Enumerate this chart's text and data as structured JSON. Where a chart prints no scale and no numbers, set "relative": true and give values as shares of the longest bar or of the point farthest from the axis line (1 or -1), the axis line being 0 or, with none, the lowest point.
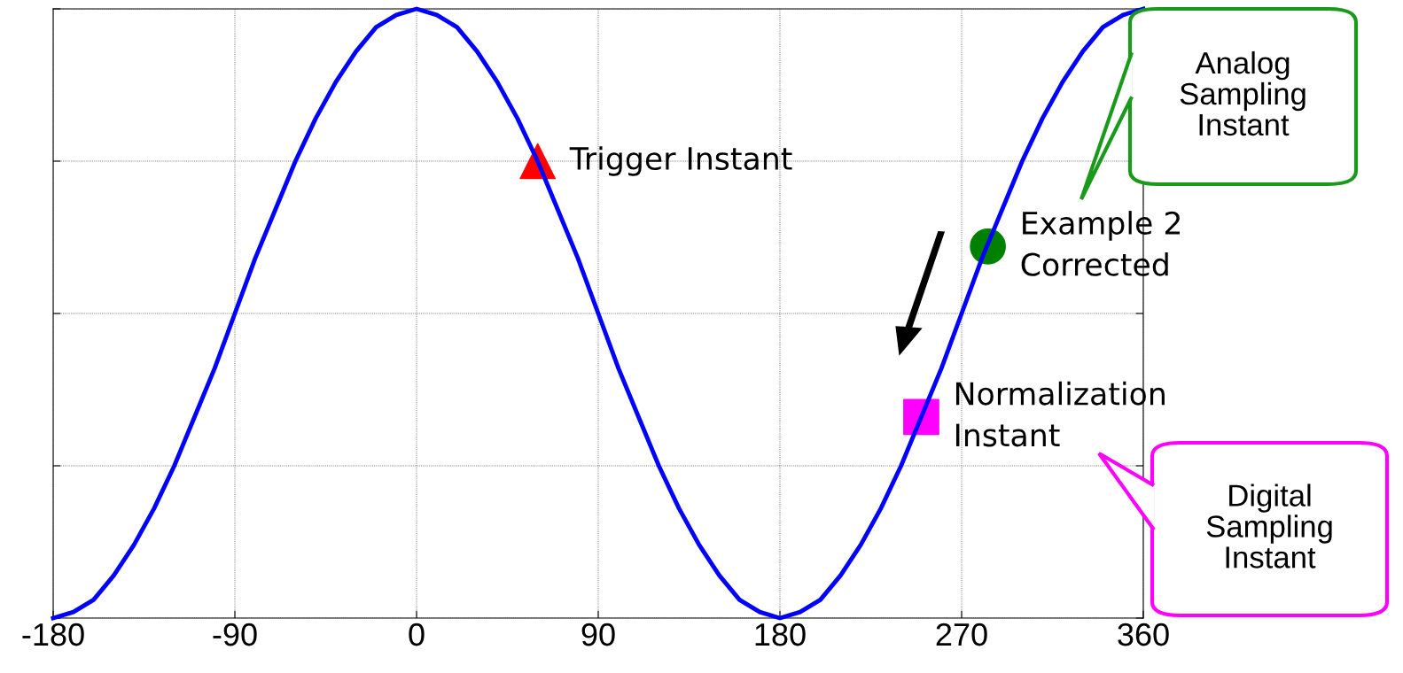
{
  "chart_data": {
    "type": "line",
    "relative": true,
    "xlim": [
      -180,
      360
    ],
    "xticks": [
      -180,
      -90,
      0,
      90,
      180,
      270,
      360
    ],
    "grid": true,
    "tick_labels": "x",
    "series": [
      {
        "color": "#0000ff",
        "x": [
          -180,
          -170,
          -160,
          -150,
          -140,
          -130,
          -120,
          -110,
          -100,
          -90,
          -80,
          -70,
          -60,
          -50,
          -40,
          -30,
          -20,
          -10,
          0,
          10,
          20,
          30,
          40,
          50,
          60,
          70,
          80,
          90,
          100,
          110,
          120,
          130,
          140,
          150,
          160,
          170,
          180,
          190,
          200,
          210,
          220,
          230,
          240,
          250,
          260,
          270,
          280,
          290,
          300,
          310,
          320,
          330,
          340,
          350,
          360
        ],
        "values": [
          0,
          0.01,
          0.03,
          0.07,
          0.12,
          0.18,
          0.25,
          0.33,
          0.41,
          0.5,
          0.59,
          0.67,
          0.75,
          0.82,
          0.88,
          0.93,
          0.97,
          0.99,
          1,
          0.99,
          0.97,
          0.93,
          0.88,
          0.82,
          0.75,
          0.67,
          0.59,
          0.5,
          0.41,
          0.33,
          0.25,
          0.18,
          0.12,
          0.07,
          0.03,
          0.01,
          0,
          0.01,
          0.03,
          0.07,
          0.12,
          0.18,
          0.25,
          0.33,
          0.41,
          0.5,
          0.59,
          0.67,
          0.75,
          0.82,
          0.88,
          0.93,
          0.97,
          0.99,
          1
        ]
      },
      {
        "type": "scatter",
        "color": "#ff0000",
        "marker": "triangle",
        "x": [
          60
        ],
        "values": [
          0.75
        ]
      },
      {
        "type": "scatter",
        "color": "#008000",
        "marker": "circle",
        "x": [
          283
        ],
        "values": [
          0.61
        ]
      },
      {
        "type": "scatter",
        "color": "#ff00ff",
        "marker": "square",
        "x": [
          250
        ],
        "values": [
          0.33
        ]
      }
    ],
    "annotations": [
      {
        "text": "Trigger Instant",
        "x": 60,
        "y": 0.75
      },
      {
        "text": "Example 2\nCorrected",
        "x": 283,
        "y": 0.61
      },
      {
        "text": "Normalization\nInstant",
        "x": 250,
        "y": 0.33
      },
      "Analog\nSampling\nInstant",
      "Digital\nSampling\nInstant"
    ]
  }
}
